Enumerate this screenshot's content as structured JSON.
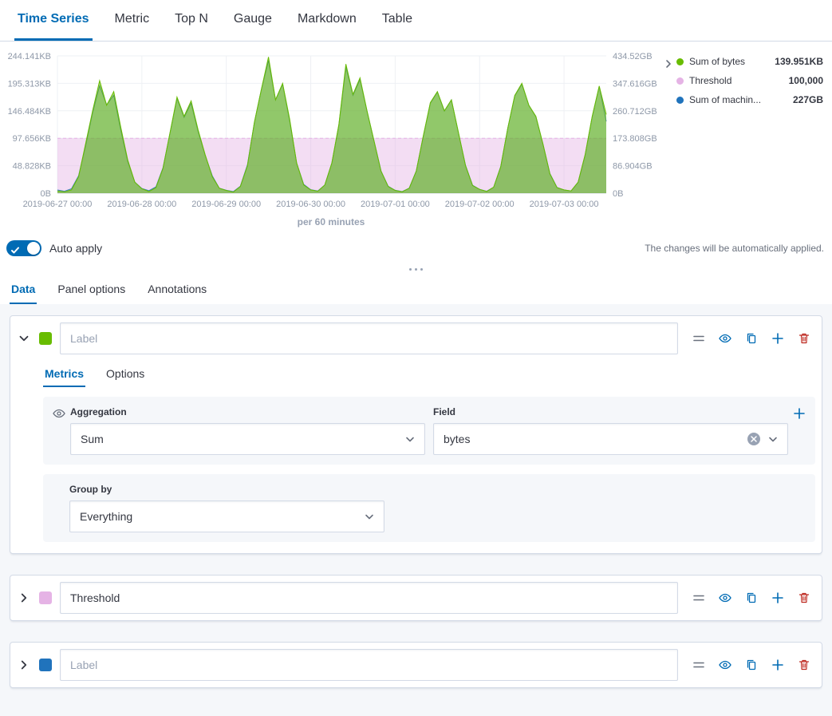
{
  "top_tabs": {
    "items": [
      {
        "label": "Time Series",
        "active": true
      },
      {
        "label": "Metric",
        "active": false
      },
      {
        "label": "Top N",
        "active": false
      },
      {
        "label": "Gauge",
        "active": false
      },
      {
        "label": "Markdown",
        "active": false
      },
      {
        "label": "Table",
        "active": false
      }
    ]
  },
  "chart_data": {
    "type": "area",
    "title": "",
    "caption": "per 60 minutes",
    "grid": true,
    "legend_position": "right",
    "x_tick_labels": [
      "2019-06-27 00:00",
      "2019-06-28 00:00",
      "2019-06-29 00:00",
      "2019-06-30 00:00",
      "2019-07-01 00:00",
      "2019-07-02 00:00",
      "2019-07-03 00:00"
    ],
    "left_axis": {
      "ticks": [
        "0B",
        "48.828KB",
        "97.656KB",
        "146.484KB",
        "195.313KB",
        "244.141KB"
      ],
      "max": 250000
    },
    "right_axis": {
      "ticks": [
        "0B",
        "86.904GB",
        "173.808GB",
        "260.712GB",
        "347.616GB",
        "434.52GB"
      ],
      "max": 434.52
    },
    "threshold": {
      "value": 100000,
      "color": "#E5B3E5"
    },
    "series": [
      {
        "name": "Sum of bytes",
        "axis": "left",
        "color": "#68BC00",
        "fill_opacity": 0.55,
        "values": [
          4000,
          2500,
          6000,
          30000,
          90000,
          150000,
          205000,
          160000,
          185000,
          120000,
          60000,
          20000,
          8000,
          3000,
          10000,
          45000,
          110000,
          175000,
          140000,
          168000,
          115000,
          70000,
          30000,
          9000,
          5000,
          2000,
          12000,
          50000,
          130000,
          190000,
          248000,
          170000,
          200000,
          135000,
          55000,
          15000,
          6000,
          3500,
          15000,
          55000,
          125000,
          235000,
          180000,
          210000,
          150000,
          95000,
          40000,
          12000,
          5000,
          2500,
          9000,
          40000,
          105000,
          165000,
          185000,
          150000,
          170000,
          110000,
          50000,
          14000,
          7000,
          3000,
          11000,
          48000,
          118000,
          178000,
          200000,
          160000,
          140000,
          90000,
          35000,
          10000,
          6000,
          4000,
          20000,
          70000,
          140000,
          195000,
          143310
        ]
      },
      {
        "name": "Sum of machine ram",
        "axis": "right",
        "color": "#3B7DBF",
        "fill_opacity": 0.3,
        "values": [
          10,
          6,
          14,
          55,
          150,
          255,
          340,
          280,
          310,
          200,
          100,
          35,
          15,
          8,
          20,
          80,
          190,
          300,
          240,
          285,
          195,
          120,
          55,
          16,
          9,
          5,
          22,
          90,
          225,
          330,
          420,
          295,
          345,
          230,
          95,
          28,
          11,
          7,
          26,
          95,
          215,
          400,
          310,
          360,
          260,
          165,
          70,
          22,
          9,
          5,
          16,
          70,
          180,
          285,
          320,
          260,
          295,
          190,
          88,
          25,
          12,
          6,
          19,
          84,
          205,
          308,
          345,
          278,
          242,
          156,
          62,
          18,
          10,
          7,
          34,
          120,
          242,
          338,
          227
        ]
      }
    ]
  },
  "legend": {
    "items": [
      {
        "label": "Sum of bytes",
        "value": "139.951KB",
        "color": "#68BC00"
      },
      {
        "label": "Threshold",
        "value": "100,000",
        "color": "#E5B3E5"
      },
      {
        "label": "Sum of machin...",
        "value": "227GB",
        "color": "#2073BC"
      }
    ]
  },
  "auto_apply": {
    "label": "Auto apply",
    "hint": "The changes will be automatically applied."
  },
  "editor_tabs": {
    "items": [
      {
        "label": "Data",
        "active": true
      },
      {
        "label": "Panel options",
        "active": false
      },
      {
        "label": "Annotations",
        "active": false
      }
    ]
  },
  "panels": [
    {
      "color": "#68BC00",
      "label_placeholder": "Label",
      "label_value": "",
      "tabs": [
        {
          "label": "Metrics",
          "active": true
        },
        {
          "label": "Options",
          "active": false
        }
      ],
      "aggregation": {
        "label": "Aggregation",
        "value": "Sum"
      },
      "field": {
        "label": "Field",
        "value": "bytes"
      },
      "group_by": {
        "label": "Group by",
        "value": "Everything"
      }
    },
    {
      "color": "#E5B3E5",
      "label_placeholder": "Label",
      "label_value": "Threshold"
    },
    {
      "color": "#2073BC",
      "label_placeholder": "Label",
      "label_value": ""
    }
  ]
}
